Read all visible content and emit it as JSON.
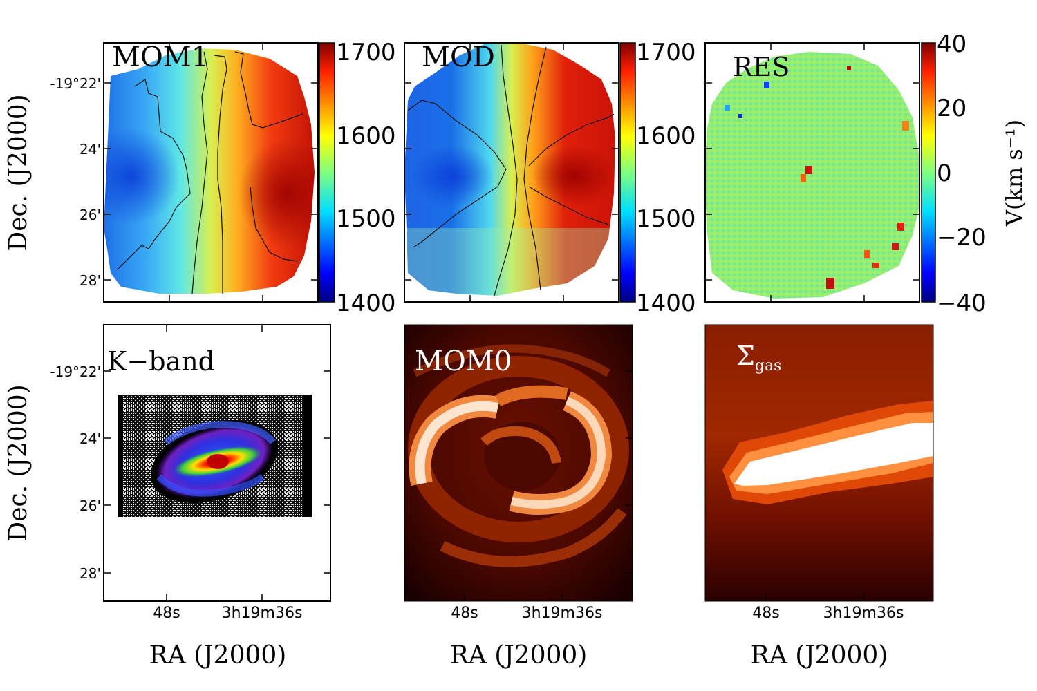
{
  "chart_data": [
    {
      "type": "heatmap",
      "panel": "MOM1",
      "title": "MOM1",
      "colormap": "jet",
      "colorbar": {
        "min": 1400,
        "max": 1700,
        "ticks": [
          1400,
          1500,
          1600,
          1700
        ]
      },
      "yticks": [
        "-19°22'",
        "24'",
        "26'",
        "28'"
      ],
      "ylabel": "Dec. (J2000)",
      "xticks": [],
      "contours": true
    },
    {
      "type": "heatmap",
      "panel": "MOD",
      "title": "MOD",
      "colormap": "jet",
      "colorbar": {
        "min": 1400,
        "max": 1700,
        "ticks": [
          1400,
          1500,
          1600,
          1700
        ]
      },
      "contours": true
    },
    {
      "type": "heatmap",
      "panel": "RES",
      "title": "RES",
      "colormap": "jet",
      "colorbar": {
        "min": -40,
        "max": 40,
        "ticks": [
          -40,
          -20,
          0,
          20,
          40
        ],
        "tick_labels": [
          "−40",
          "−20",
          "0",
          "20",
          "40"
        ],
        "label": "V(km s⁻¹)"
      }
    },
    {
      "type": "heatmap",
      "panel": "K-band",
      "title": "K−band",
      "yticks": [
        "-19°22'",
        "24'",
        "26'",
        "28'"
      ],
      "ylabel": "Dec. (J2000)",
      "xticks": [
        "48s",
        "3h19m36s"
      ],
      "xlabel": "RA (J2000)"
    },
    {
      "type": "heatmap",
      "panel": "MOM0",
      "title": "MOM0",
      "colormap": "gist_heat",
      "xticks": [
        "48s",
        "3h19m36s"
      ],
      "xlabel": "RA (J2000)"
    },
    {
      "type": "heatmap",
      "panel": "Sigma_gas",
      "title": "Σ",
      "title_subscript": "gas",
      "colormap": "gist_heat",
      "xticks": [
        "48s",
        "3h19m36s"
      ],
      "xlabel": "RA (J2000)"
    }
  ]
}
